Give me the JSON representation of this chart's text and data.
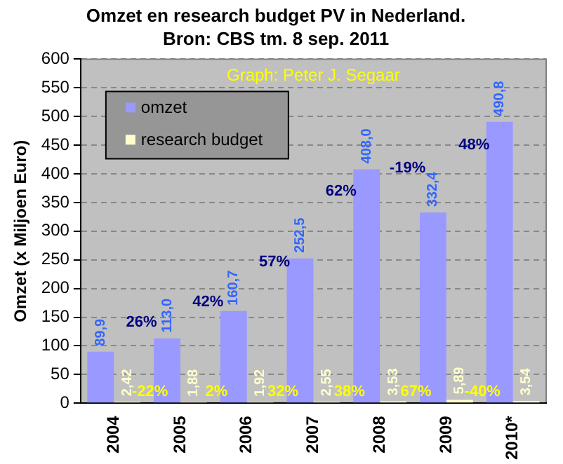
{
  "chart_data": {
    "type": "bar",
    "title": "Omzet en research budget PV in Nederland.",
    "subtitle": "Bron: CBS tm. 8 sep. 2011",
    "ylabel": "Omzet (x Miljoen Euro)",
    "categories": [
      "2004",
      "2005",
      "2006",
      "2007",
      "2008",
      "2009",
      "2010*"
    ],
    "series": [
      {
        "name": "omzet",
        "color": "#9999ff",
        "values": [
          89.9,
          113.0,
          160.7,
          252.5,
          408.0,
          332.4,
          490.8
        ],
        "value_labels": [
          "89,9",
          "113,0",
          "160,7",
          "252,5",
          "408,0",
          "332,4",
          "490,8"
        ]
      },
      {
        "name": "research budget",
        "color": "#ffffcc",
        "values": [
          2.42,
          1.88,
          1.92,
          2.55,
          3.53,
          5.89,
          3.54
        ],
        "value_labels": [
          "2,42",
          "1,88",
          "1,92",
          "2,55",
          "3,53",
          "5,89",
          "3,54"
        ]
      }
    ],
    "ylim": [
      0,
      600
    ],
    "yticks": [
      0,
      50,
      100,
      150,
      200,
      250,
      300,
      350,
      400,
      450,
      500,
      550,
      600
    ],
    "grid": "y",
    "legend": "top left",
    "annotations": [
      "Graph: Peter J. Segaar",
      "26%",
      "42%",
      "57%",
      "62%",
      "-19%",
      "48%",
      "-22%",
      "2%",
      "32%",
      "38%",
      "67%",
      "-40%"
    ]
  }
}
